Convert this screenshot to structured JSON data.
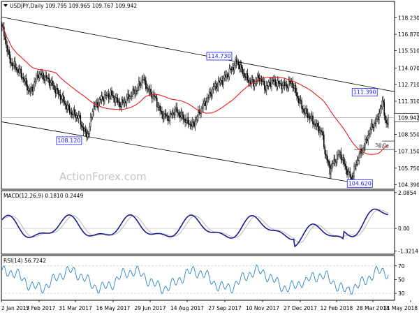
{
  "chart_data": [
    {
      "type": "candlestick",
      "title": "USDJPY,Daily  109.795 109.965 109.767 109.942",
      "ylim": [
        104.0,
        119.6
      ],
      "y_ticks": [
        "118.230",
        "116.870",
        "115.510",
        "114.070",
        "112.710",
        "111.310",
        "109.942",
        "108.550",
        "107.150",
        "105.750",
        "104.390"
      ],
      "last_price": 109.942,
      "callouts": [
        {
          "label": "114.730",
          "value": 114.73
        },
        {
          "label": "108.120",
          "value": 108.12
        },
        {
          "label": "111.390",
          "value": 111.39
        },
        {
          "label": "104.620",
          "value": 104.62
        }
      ],
      "fib_labels": [
        {
          "label": "50.0",
          "value": 108.0
        },
        {
          "label": "61.8",
          "value": 107.3
        }
      ],
      "colors": {
        "candles": "#000000",
        "moving_average": "#e02020",
        "channel": "#000000",
        "callout": "#1a1aff",
        "last_price_line": "#bdbdbd"
      }
    },
    {
      "type": "line",
      "title": "MACD(12,26,9) 0.1810 0.2449",
      "ylim": [
        -1.5,
        2.2
      ],
      "y_ticks": [
        "2.0854",
        "0.00",
        "-1.3214"
      ],
      "series": [
        {
          "name": "MACD",
          "color": "#1a1a8c"
        },
        {
          "name": "Signal",
          "color": "#b8b8b8"
        }
      ]
    },
    {
      "type": "line",
      "title": "RSI(14) 56.7242",
      "ylim": [
        20,
        85
      ],
      "y_ticks": [
        "70",
        "50",
        "30"
      ],
      "series": [
        {
          "name": "RSI",
          "color": "#2b86c8"
        }
      ]
    }
  ],
  "x_dates": [
    "2 Jan 2017",
    "15 Feb 2017",
    "31 Mar 2017",
    "16 May 2017",
    "29 Jun 2017",
    "14 Aug 2017",
    "27 Sep 2017",
    "10 Nov 2017",
    "27 Dec 2017",
    "12 Feb 2018",
    "28 Mar 2018",
    "11 May 2018"
  ],
  "watermark": "ActionForex.com"
}
